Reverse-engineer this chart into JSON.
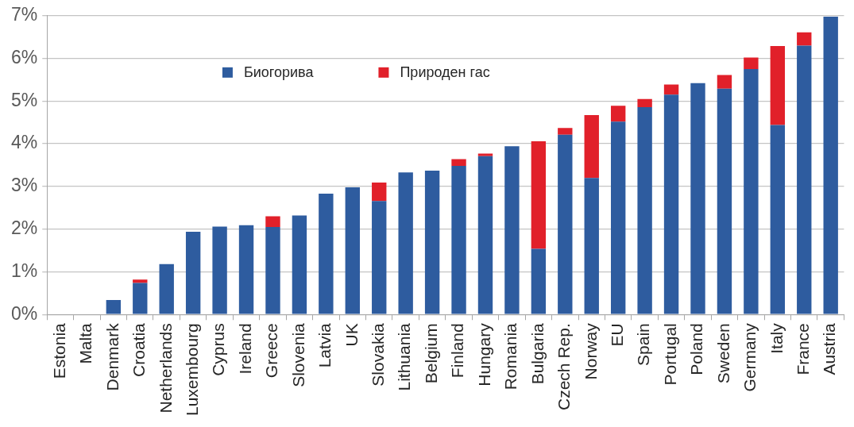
{
  "chart_data": {
    "type": "bar",
    "stacked": true,
    "categories": [
      "Estonia",
      "Malta",
      "Denmark",
      "Croatia",
      "Netherlands",
      "Luxembourg",
      "Cyprus",
      "Ireland",
      "Greece",
      "Slovenia",
      "Latvia",
      "UK",
      "Slovakia",
      "Lithuania",
      "Belgium",
      "Finland",
      "Hungary",
      "Romania",
      "Bulgaria",
      "Czech Rep.",
      "Norway",
      "EU",
      "Spain",
      "Portugal",
      "Poland",
      "Sweden",
      "Germany",
      "Italy",
      "France",
      "Austria"
    ],
    "series": [
      {
        "name": "Биогорива",
        "color": "#2e5c9f",
        "values": [
          0,
          0,
          0.34,
          0.74,
          1.18,
          1.94,
          2.06,
          2.09,
          2.05,
          2.32,
          2.83,
          2.98,
          2.66,
          3.33,
          3.37,
          3.48,
          3.71,
          3.94,
          1.54,
          4.21,
          3.2,
          4.52,
          4.86,
          5.15,
          5.42,
          5.29,
          5.75,
          4.44,
          6.3,
          6.98
        ]
      },
      {
        "name": "Природен гас",
        "color": "#e1202a",
        "values": [
          0,
          0,
          0,
          0.08,
          0,
          0,
          0,
          0,
          0.25,
          0,
          0,
          0,
          0.43,
          0,
          0,
          0.16,
          0.06,
          0,
          2.52,
          0.16,
          1.47,
          0.37,
          0.19,
          0.24,
          0,
          0.32,
          0.27,
          1.85,
          0.31,
          0
        ]
      }
    ],
    "ylim": [
      0,
      7
    ],
    "yticks": [
      {
        "value": 0,
        "label": "0%"
      },
      {
        "value": 1,
        "label": "1%"
      },
      {
        "value": 2,
        "label": "2%"
      },
      {
        "value": 3,
        "label": "3%"
      },
      {
        "value": 4,
        "label": "4%"
      },
      {
        "value": 5,
        "label": "5%"
      },
      {
        "value": 6,
        "label": "6%"
      },
      {
        "value": 7,
        "label": "7%"
      }
    ],
    "grid": "y",
    "legend": "top"
  }
}
